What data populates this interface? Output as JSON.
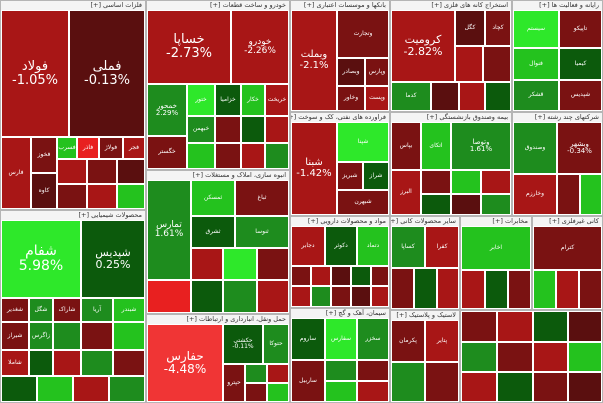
{
  "colors": {
    "deep_red": "#5a0f0f",
    "dark_red": "#7a1212",
    "red": "#a81616",
    "bright_red": "#e82020",
    "light_red": "#f03535",
    "dark_green": "#0c5a0c",
    "green": "#1e8c1e",
    "bright_green": "#24c21e",
    "lime": "#2ee82a",
    "grey": "#6a6a6a"
  },
  "chart_data": {
    "type": "treemap",
    "sectors": [
      {
        "title": "فلزات اساسی [+]",
        "tiles": [
          {
            "name": "فولاد",
            "change": "-1.05%",
            "color": "red"
          },
          {
            "name": "فملی",
            "change": "-0.13%",
            "color": "deep_red"
          },
          {
            "name": "فارس",
            "change": "",
            "color": "red"
          },
          {
            "name": "فخوز",
            "change": "",
            "color": "dark_red"
          },
          {
            "name": "فسرب",
            "change": "",
            "color": "bright_green"
          },
          {
            "name": "فاذر",
            "change": "",
            "color": "bright_red"
          },
          {
            "name": "فولاژ",
            "change": "",
            "color": "dark_red"
          },
          {
            "name": "فجر",
            "change": "",
            "color": "red"
          },
          {
            "name": "کاوه",
            "change": "",
            "color": "deep_red"
          }
        ]
      },
      {
        "title": "خودرو و ساخت قطعات [+]",
        "tiles": [
          {
            "name": "خساپا",
            "change": "-2.73%",
            "color": "red"
          },
          {
            "name": "خودرو",
            "change": "-2.26%",
            "color": "red"
          },
          {
            "name": "خمحور",
            "change": "2.29%",
            "color": "green"
          },
          {
            "name": "خگستر",
            "change": "",
            "color": "dark_red"
          },
          {
            "name": "ختور",
            "change": "",
            "color": "lime"
          },
          {
            "name": "خزامیا",
            "change": "",
            "color": "dark_green"
          },
          {
            "name": "خکار",
            "change": "",
            "color": "bright_green"
          },
          {
            "name": "خریخت",
            "change": "",
            "color": "red"
          },
          {
            "name": "خبهمن",
            "change": "",
            "color": "green"
          }
        ]
      },
      {
        "title": "بانکها و موسسات اعتباری [+]",
        "tiles": [
          {
            "name": "وبملت",
            "change": "-2.1%",
            "color": "red"
          },
          {
            "name": "وتجارت",
            "change": "",
            "color": "dark_red"
          },
          {
            "name": "وبصادر",
            "change": "",
            "color": "deep_red"
          },
          {
            "name": "وپارس",
            "change": "",
            "color": "dark_red"
          },
          {
            "name": "وخاور",
            "change": "",
            "color": "dark_red"
          },
          {
            "name": "وپست",
            "change": "",
            "color": "red"
          }
        ]
      },
      {
        "title": "استخراج کانه های فلزی [+]",
        "tiles": [
          {
            "name": "کرومیت",
            "change": "-2.82%",
            "color": "red"
          },
          {
            "name": "کگل",
            "change": "",
            "color": "deep_red"
          },
          {
            "name": "کچاد",
            "change": "",
            "color": "dark_red"
          },
          {
            "name": "کدما",
            "change": "",
            "color": "green"
          }
        ]
      },
      {
        "title": "رایانه و فعالیت ها [+]",
        "tiles": [
          {
            "name": "سیستم",
            "change": "",
            "color": "lime"
          },
          {
            "name": "تاپیکو",
            "change": "",
            "color": "dark_red"
          },
          {
            "name": "فنوال",
            "change": "",
            "color": "bright_green"
          },
          {
            "name": "کیمیا",
            "change": "",
            "color": "dark_green"
          },
          {
            "name": "قشکر",
            "change": "",
            "color": "green"
          },
          {
            "name": "شپدیس",
            "change": "",
            "color": "dark_red"
          }
        ]
      },
      {
        "title": "محصولات شیمیایی [+]",
        "tiles": [
          {
            "name": "شفام",
            "change": "5.98%",
            "color": "lime"
          },
          {
            "name": "شپدیس",
            "change": "0.25%",
            "color": "dark_green"
          },
          {
            "name": "شغدیر",
            "change": "",
            "color": "dark_red"
          },
          {
            "name": "شگل",
            "change": "",
            "color": "green"
          },
          {
            "name": "شاراک",
            "change": "",
            "color": "dark_red"
          },
          {
            "name": "آریا",
            "change": "",
            "color": "green"
          },
          {
            "name": "شبندر",
            "change": "",
            "color": "bright_green"
          },
          {
            "name": "شیراز",
            "change": "",
            "color": "dark_red"
          },
          {
            "name": "زاگرس",
            "change": "",
            "color": "green"
          },
          {
            "name": "شاملا",
            "change": "",
            "color": "red"
          }
        ]
      },
      {
        "title": "انبوه سازی، املاک و مستغلات [+]",
        "tiles": [
          {
            "name": "ثمسکن",
            "change": "",
            "color": "bright_green"
          },
          {
            "name": "ثباغ",
            "change": "",
            "color": "dark_red"
          },
          {
            "name": "ثشرق",
            "change": "",
            "color": "dark_green"
          },
          {
            "name": "ثنوسا",
            "change": "",
            "color": "green"
          }
        ]
      },
      {
        "title": "فراورده های نفتی، کک و سوخت [+]",
        "tiles": [
          {
            "name": "شبنا",
            "change": "-1.42%",
            "color": "red"
          },
          {
            "name": "شپنا",
            "change": "",
            "color": "lime"
          },
          {
            "name": "شبریز",
            "change": "",
            "color": "dark_red"
          },
          {
            "name": "شراز",
            "change": "",
            "color": "dark_green"
          },
          {
            "name": "شبهرن",
            "change": "",
            "color": "dark_red"
          }
        ]
      },
      {
        "title": "بیمه وصندوق بازنشستگی [+]",
        "tiles": [
          {
            "name": "وتوصا",
            "change": "1.61%",
            "color": "green"
          },
          {
            "name": "بپاس",
            "change": "",
            "color": "dark_red"
          },
          {
            "name": "اتکای",
            "change": "",
            "color": "bright_green"
          },
          {
            "name": "البرز",
            "change": "",
            "color": "red"
          }
        ]
      },
      {
        "title": "شرکتهای چند رشته [+]",
        "tiles": [
          {
            "name": "وبشهر",
            "change": "-0.34%",
            "color": "dark_red"
          },
          {
            "name": "وصندوق",
            "change": "",
            "color": "green"
          },
          {
            "name": "وخارزم",
            "change": "",
            "color": "red"
          }
        ]
      },
      {
        "title": "حمل ونقل، انبارداری و ارتباطات [+]",
        "tiles": [
          {
            "name": "حفارس",
            "change": "-4.48%",
            "color": "light_red"
          },
          {
            "name": "حکشتی",
            "change": "-0.11%",
            "color": "dark_green"
          },
          {
            "name": "حتوکا",
            "change": "",
            "color": "green"
          },
          {
            "name": "حپترو",
            "change": "",
            "color": "dark_red"
          }
        ]
      },
      {
        "title": "مواد و محصولات دارویی [+]",
        "tiles": [
          {
            "name": "دجابر",
            "change": "",
            "color": "red"
          },
          {
            "name": "دکوثر",
            "change": "",
            "color": "dark_green"
          },
          {
            "name": "دتماد",
            "change": "",
            "color": "bright_green"
          }
        ]
      },
      {
        "title": "سیمان، آهک و گچ [+]",
        "tiles": [
          {
            "name": "ساروم",
            "change": "",
            "color": "dark_green"
          },
          {
            "name": "سفارس",
            "change": "",
            "color": "lime"
          },
          {
            "name": "سخزر",
            "change": "",
            "color": "green"
          },
          {
            "name": "ساربیل",
            "change": "",
            "color": "dark_red"
          }
        ]
      },
      {
        "title": "سایر محصولات کانی [+]",
        "tiles": [
          {
            "name": "کساپا",
            "change": "",
            "color": "green"
          },
          {
            "name": "کفرا",
            "change": "",
            "color": "red"
          }
        ]
      },
      {
        "title": "لاستیک و پلاستیک [+]",
        "tiles": [
          {
            "name": "پکرمان",
            "change": "",
            "color": "dark_red"
          },
          {
            "name": "پتایر",
            "change": "",
            "color": "red"
          }
        ]
      },
      {
        "title": "مخابرات [+]",
        "tiles": [
          {
            "name": "اخابر",
            "change": "",
            "color": "bright_green"
          }
        ]
      },
      {
        "title": "کانی غیرفلزی [+]",
        "tiles": [
          {
            "name": "کترام",
            "change": "",
            "color": "dark_red"
          }
        ]
      }
    ]
  }
}
